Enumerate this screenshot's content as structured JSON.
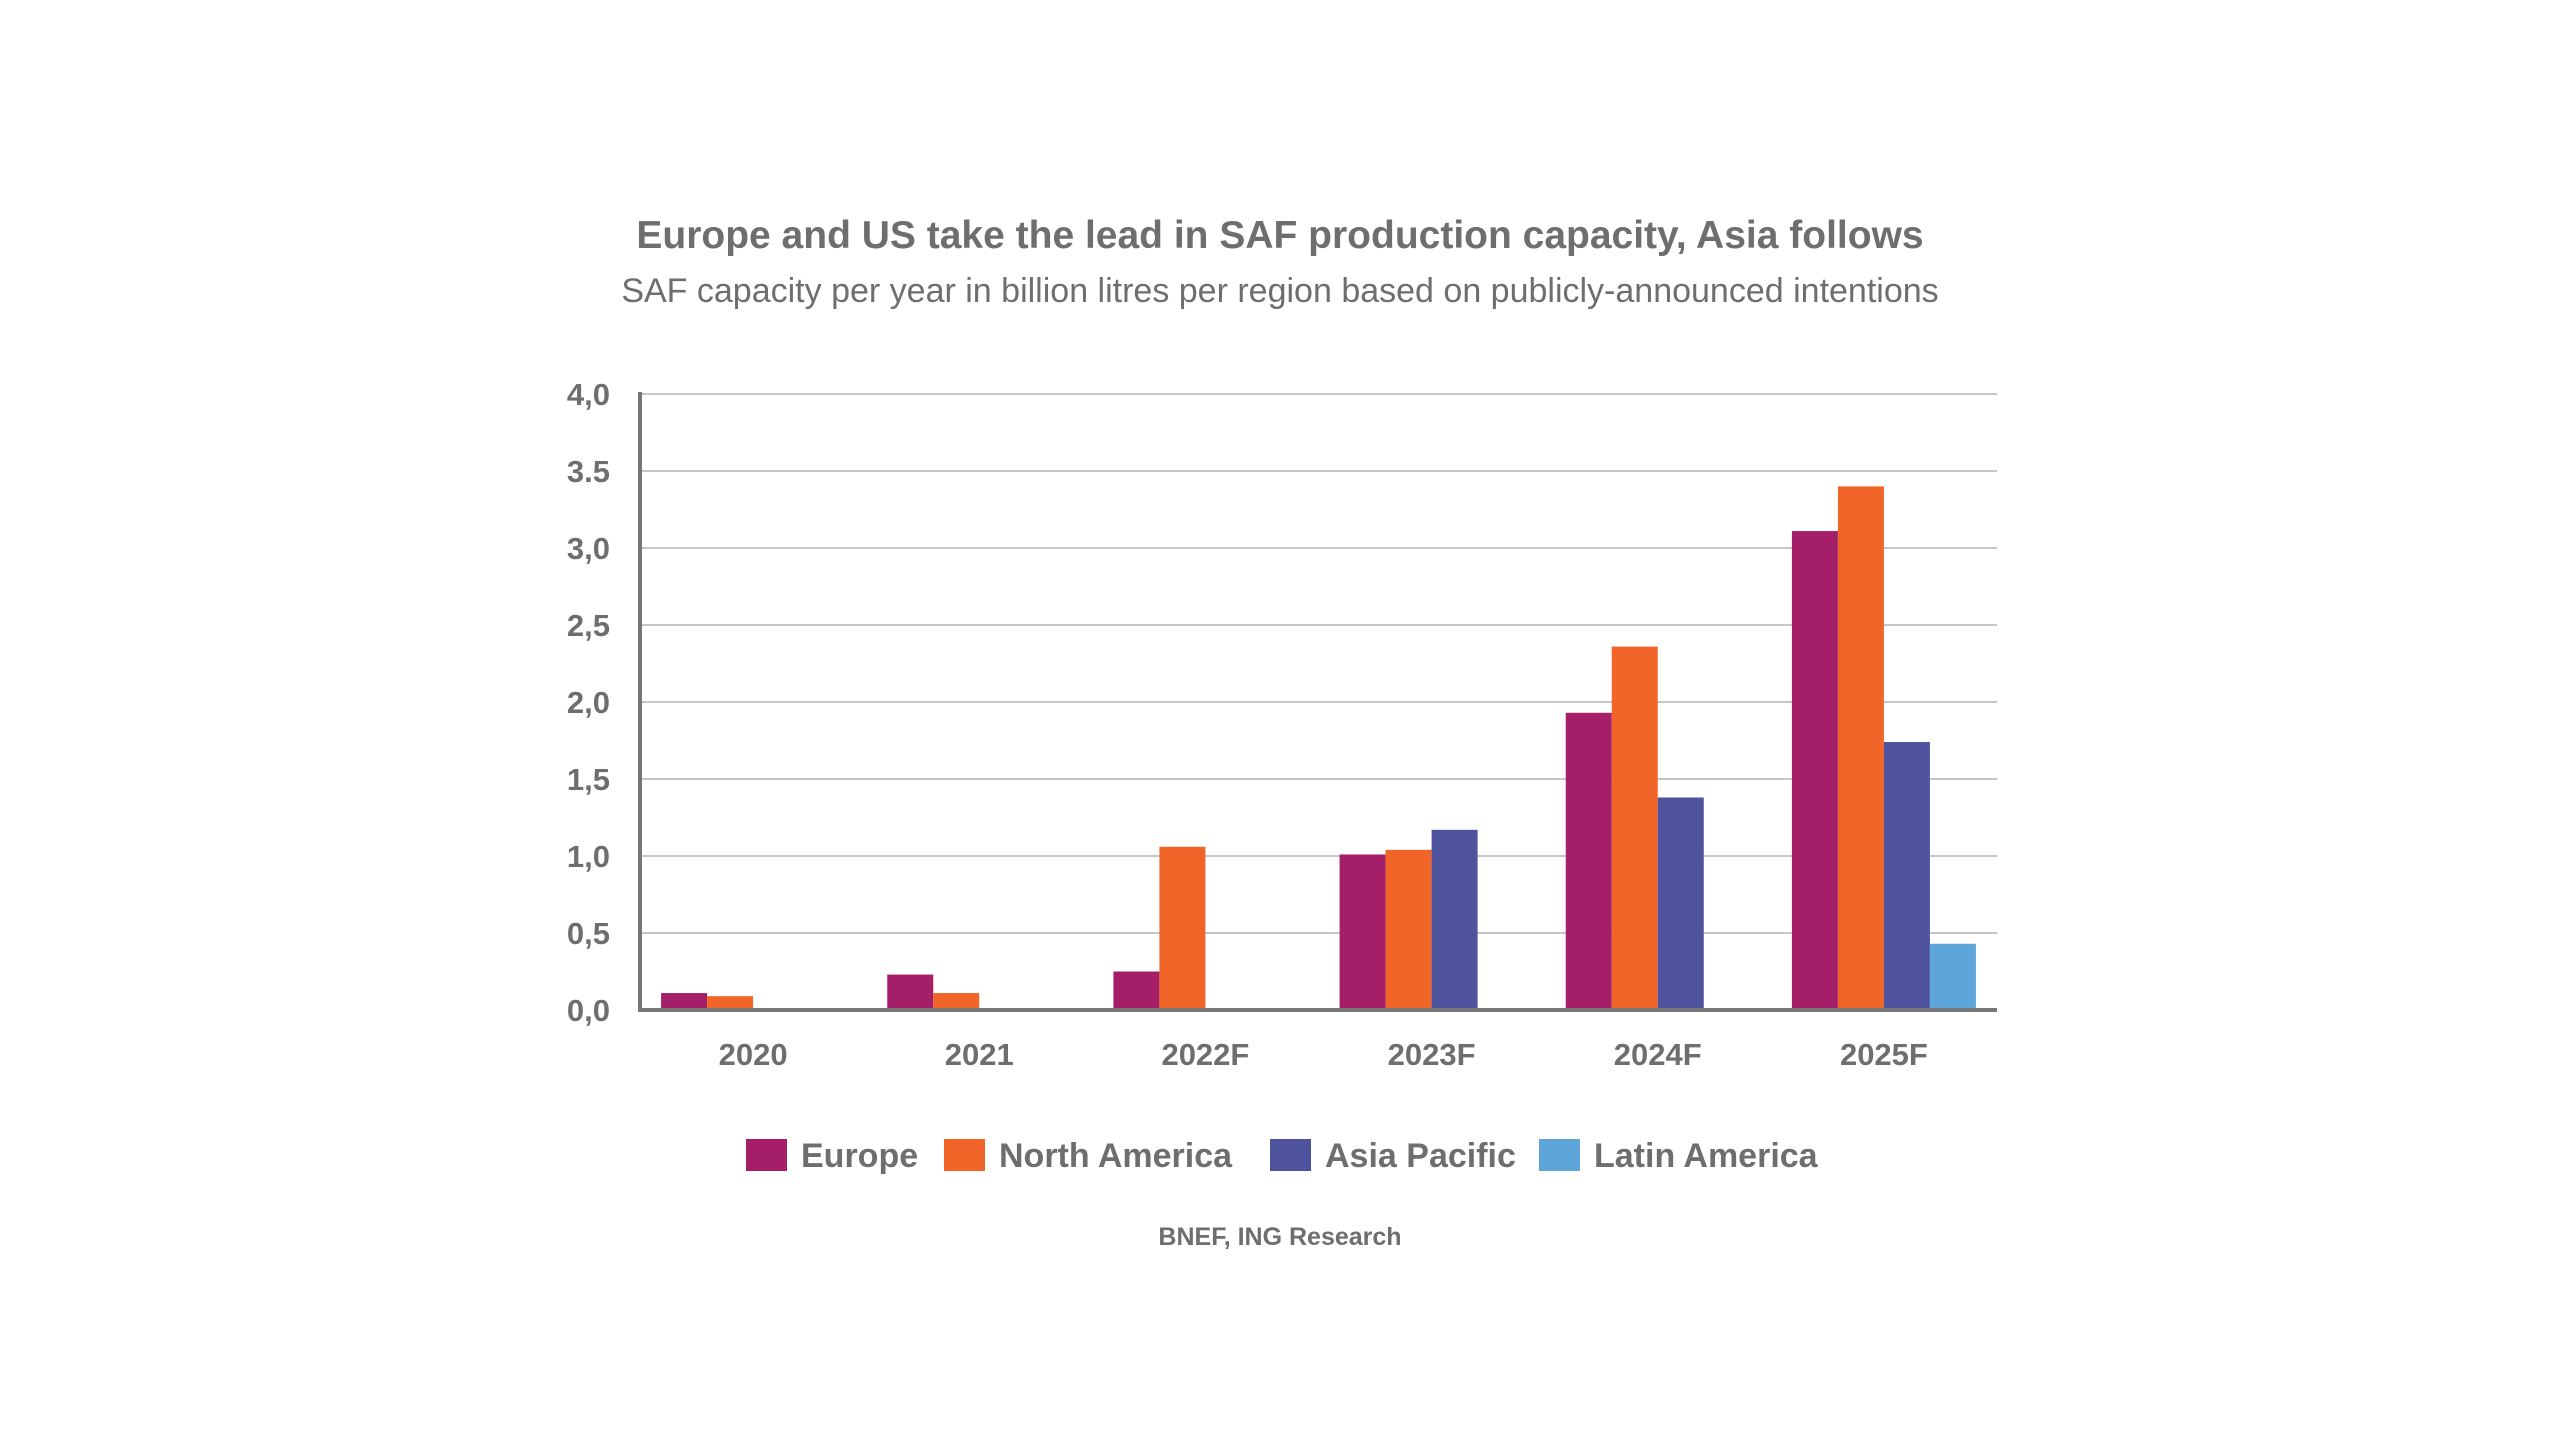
{
  "chart_data": {
    "type": "bar",
    "title": "Europe and US take the lead in SAF production capacity, Asia follows",
    "subtitle": "SAF capacity per year in billion litres per region based on publicly-announced intentions",
    "source": "BNEF, ING Research",
    "categories": [
      "2020",
      "2021",
      "2022F",
      "2023F",
      "2024F",
      "2025F"
    ],
    "ylim": [
      0,
      4
    ],
    "yticks": [
      0,
      0.5,
      1,
      1.5,
      2,
      2.5,
      3,
      3.5,
      4
    ],
    "ytick_labels": [
      "0,0",
      "0,5",
      "1,0",
      "1,5",
      "2,0",
      "2,5",
      "3,0",
      "3.5",
      "4,0"
    ],
    "grid": true,
    "legend_position": "bottom",
    "series": [
      {
        "name": "Europe",
        "color": "#a51f68",
        "values": [
          0.11,
          0.23,
          0.25,
          1.01,
          1.93,
          3.11
        ]
      },
      {
        "name": "North America",
        "color": "#f26529",
        "values": [
          0.09,
          0.11,
          1.06,
          1.04,
          2.36,
          3.4
        ]
      },
      {
        "name": "Asia Pacific",
        "color": "#4f529c",
        "values": [
          0,
          0,
          0,
          1.17,
          1.38,
          1.74
        ]
      },
      {
        "name": "Latin America",
        "color": "#5ea5d9",
        "values": [
          0,
          0,
          0,
          0,
          0,
          0.43
        ]
      }
    ]
  }
}
